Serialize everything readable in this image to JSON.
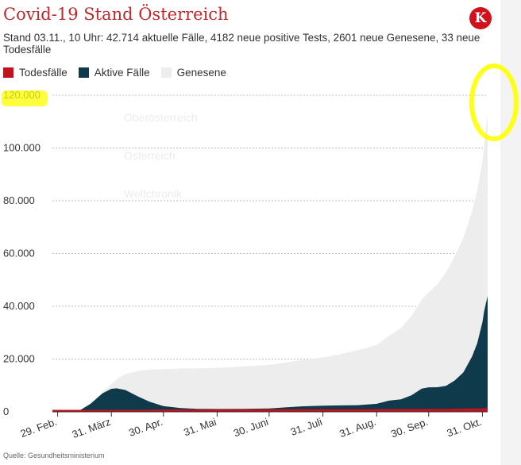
{
  "header": {
    "title": "Covid-19 Stand Österreich",
    "subtitle": "Stand 03.11., 10 Uhr: 42.714 aktuelle Fälle, 4182 neue positive Tests, 2601 neue Genesene, 33 neue Todesfälle",
    "logo_letter": "K"
  },
  "background_nav": [
    "Oberösterreich",
    "Österreich",
    "Weltchronik"
  ],
  "legend": [
    {
      "label": "Todesfälle",
      "color": "#c0121f"
    },
    {
      "label": "Aktive Fälle",
      "color": "#0e3a4c"
    },
    {
      "label": "Genesene",
      "color": "#ededed"
    }
  ],
  "source": "Quelle: Gesundheitsministerium",
  "colors": {
    "highlight": "#ffff00"
  },
  "chart_data": {
    "type": "area",
    "stacked": true,
    "title": "Covid-19 Stand Österreich",
    "xlabel": "",
    "ylabel": "",
    "ylim": [
      0,
      120000
    ],
    "yticks": [
      0,
      20000,
      40000,
      60000,
      80000,
      100000,
      120000
    ],
    "ytick_labels": [
      "0",
      "20.000",
      "40.000",
      "60.000",
      "80.000",
      "100.000",
      "120.000"
    ],
    "xlim": [
      "2020-02-26",
      "2020-11-03"
    ],
    "xticks": [
      "2020-02-29",
      "2020-03-31",
      "2020-04-30",
      "2020-05-31",
      "2020-06-30",
      "2020-07-31",
      "2020-08-31",
      "2020-09-30",
      "2020-10-31"
    ],
    "xtick_labels": [
      "29. Feb.",
      "31. März",
      "30. Apr.",
      "31. Mai",
      "30. Juni",
      "31. Juli",
      "31. Aug.",
      "30. Sep.",
      "31. Okt."
    ],
    "grid": "horizontal",
    "legend_position": "top-left",
    "dates": [
      "2020-02-26",
      "2020-03-05",
      "2020-03-12",
      "2020-03-19",
      "2020-03-26",
      "2020-03-31",
      "2020-04-03",
      "2020-04-08",
      "2020-04-15",
      "2020-04-22",
      "2020-04-30",
      "2020-05-10",
      "2020-05-20",
      "2020-05-31",
      "2020-06-15",
      "2020-06-30",
      "2020-07-10",
      "2020-07-20",
      "2020-07-31",
      "2020-08-10",
      "2020-08-20",
      "2020-08-31",
      "2020-09-07",
      "2020-09-14",
      "2020-09-20",
      "2020-09-26",
      "2020-09-30",
      "2020-10-05",
      "2020-10-10",
      "2020-10-15",
      "2020-10-20",
      "2020-10-25",
      "2020-10-28",
      "2020-10-31",
      "2020-11-01",
      "2020-11-02",
      "2020-11-03"
    ],
    "series": [
      {
        "name": "Todesfälle",
        "color": "#c0121f",
        "values": [
          0,
          0,
          1,
          30,
          70,
          110,
          200,
          300,
          450,
          520,
          590,
          620,
          640,
          670,
          690,
          710,
          715,
          720,
          720,
          730,
          735,
          735,
          745,
          755,
          770,
          790,
          790,
          810,
          850,
          880,
          920,
          980,
          1010,
          1040,
          1110,
          1130,
          1160
        ]
      },
      {
        "name": "Aktive Fälle",
        "color": "#0e3a4c",
        "values": [
          0,
          30,
          200,
          3000,
          7000,
          8600,
          8700,
          8000,
          5500,
          3300,
          1600,
          800,
          500,
          400,
          450,
          550,
          1000,
          1400,
          1600,
          1700,
          1800,
          2300,
          3500,
          4000,
          5500,
          8000,
          8500,
          8500,
          9000,
          11000,
          14000,
          20000,
          25000,
          33000,
          37000,
          40000,
          42714
        ]
      },
      {
        "name": "Genesene",
        "color": "#ededed",
        "values": [
          0,
          0,
          5,
          50,
          500,
          1800,
          3500,
          6000,
          9500,
          12200,
          14000,
          15000,
          15300,
          15600,
          16100,
          16500,
          17000,
          17600,
          18300,
          19400,
          20800,
          22300,
          24500,
          27000,
          30000,
          33700,
          36000,
          39000,
          43000,
          47000,
          51000,
          55000,
          58000,
          61000,
          63000,
          66000,
          68609
        ]
      }
    ]
  }
}
